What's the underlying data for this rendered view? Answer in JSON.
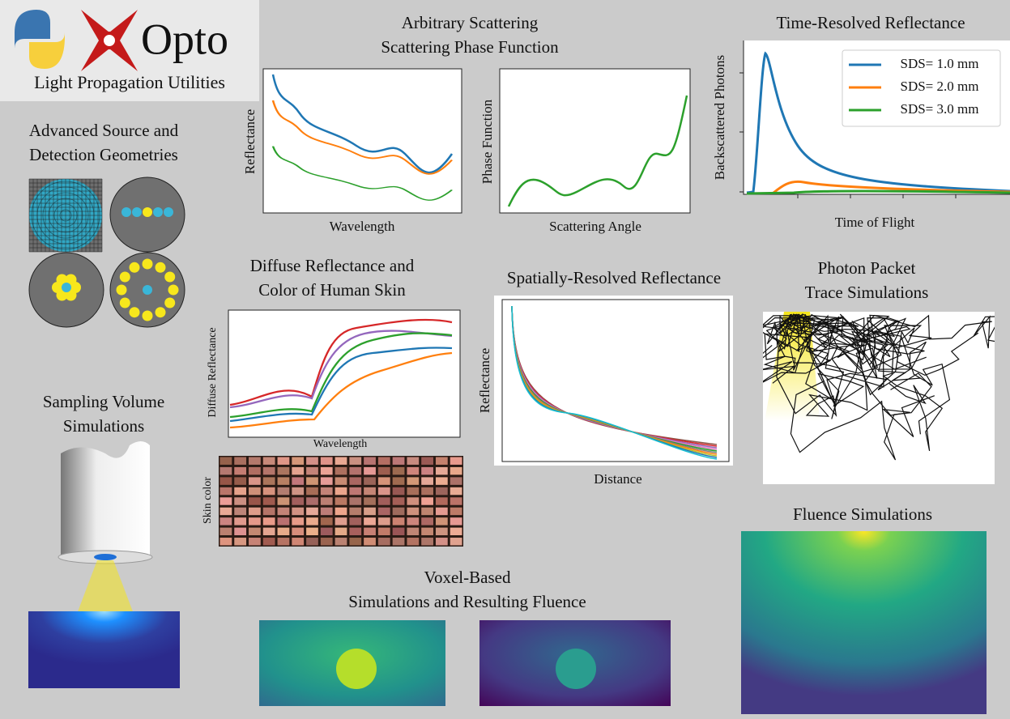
{
  "logo": {
    "name": "Opto",
    "subtitle": "Light Propagation Utilities"
  },
  "scattering": {
    "title": [
      "Arbitrary Scattering",
      "Scattering Phase Function"
    ],
    "left_xlabel": "Wavelength",
    "left_ylabel": "Reflectance",
    "right_xlabel": "Scattering Angle",
    "right_ylabel": "Phase Function"
  },
  "time_resolved": {
    "title": "Time-Resolved Reflectance",
    "xlabel": "Time of Flight",
    "ylabel": "Backscattered Photons",
    "legend": [
      "SDS= 1.0 mm",
      "SDS= 2.0 mm",
      "SDS= 3.0 mm"
    ]
  },
  "geometries": {
    "title": [
      "Advanced Source and",
      "Detection Geometries"
    ]
  },
  "skin": {
    "title": [
      "Diffuse Reflectance and",
      "Color of Human Skin"
    ],
    "xlabel": "Wavelength",
    "ylabel": "Diffuse Reflectance",
    "color_label": "Skin color"
  },
  "spatial": {
    "title": "Spatially-Resolved Reflectance",
    "xlabel": "Distance",
    "ylabel": "Reflectance"
  },
  "trace": {
    "title": [
      "Photon Packet",
      "Trace Simulations"
    ]
  },
  "sampling": {
    "title": [
      "Sampling Volume",
      "Simulations"
    ]
  },
  "voxel": {
    "title": [
      "Voxel-Based",
      "Simulations and Resulting Fluence"
    ]
  },
  "fluence": {
    "title": "Fluence Simulations"
  }
}
